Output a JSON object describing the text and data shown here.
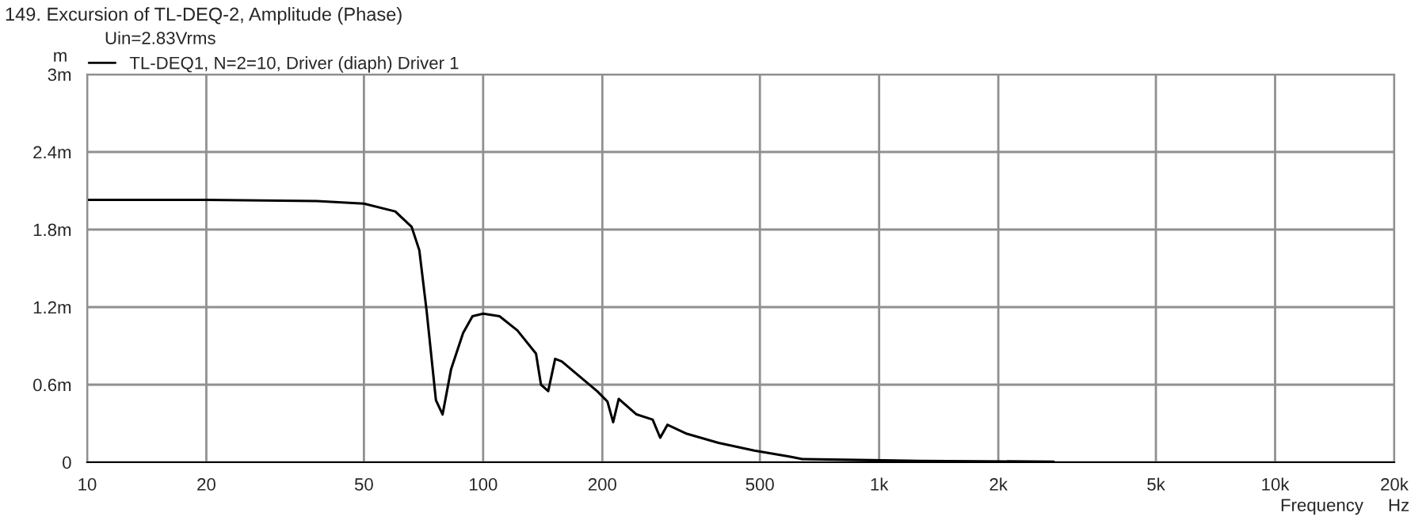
{
  "chart_data": {
    "type": "line",
    "title": "149. Excursion of TL-DEQ-2, Amplitude (Phase)",
    "subtitle": "Uin=2.83Vrms",
    "xlabel": "Frequency",
    "ylabel": "m",
    "annotations": [
      "Hz"
    ],
    "log": "x",
    "grid": true,
    "legend": "top left",
    "marker": "none",
    "line_style": "solid",
    "xlim": [
      10,
      20000
    ],
    "xticks": [
      10,
      20,
      50,
      100,
      200,
      500,
      {
        "value": 1000,
        "label": "1k"
      },
      {
        "value": 2000,
        "label": "2k"
      },
      {
        "value": 5000,
        "label": "5k"
      },
      {
        "value": 10000,
        "label": "10k"
      },
      {
        "value": 20000,
        "label": "20k"
      }
    ],
    "ylim": [
      0,
      3
    ],
    "yticks": [
      0,
      {
        "value": 0.6,
        "label": "0.6m"
      },
      {
        "value": 1.2,
        "label": "1.2m"
      },
      {
        "value": 1.8,
        "label": "1.8m"
      },
      {
        "value": 2.4,
        "label": "2.4m"
      },
      {
        "value": 3,
        "label": "3m"
      }
    ],
    "series": [
      {
        "name": "TL-DEQ1, N=2=10, Driver (diaph) Driver 1",
        "color": "#000000",
        "x": [
          10,
          20,
          38,
          50,
          60,
          66,
          69,
          72,
          76,
          79,
          83,
          89,
          94,
          100,
          110,
          122,
          136,
          140,
          146,
          152,
          158,
          194,
          206,
          213,
          220,
          244,
          268,
          280,
          292,
          327,
          393,
          484,
          593,
          640,
          955,
          1260,
          2760
        ],
        "values": [
          2.03,
          2.03,
          2.02,
          2.0,
          1.94,
          1.82,
          1.64,
          1.17,
          0.48,
          0.37,
          0.72,
          1.0,
          1.13,
          1.15,
          1.13,
          1.02,
          0.84,
          0.6,
          0.55,
          0.8,
          0.78,
          0.55,
          0.47,
          0.31,
          0.49,
          0.37,
          0.33,
          0.19,
          0.29,
          0.22,
          0.15,
          0.09,
          0.045,
          0.025,
          0.016,
          0.01,
          0.005
        ]
      }
    ]
  }
}
